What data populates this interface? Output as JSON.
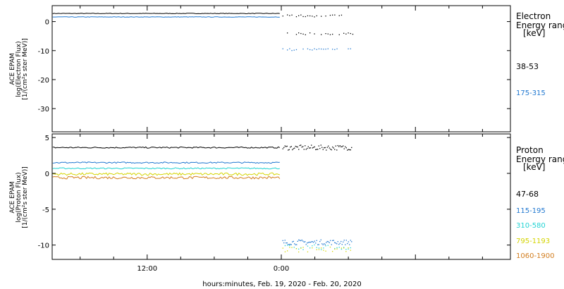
{
  "chart_data": {
    "type": "scatter",
    "xlabel": "hours:minutes, Feb. 19, 2020 - Feb. 20, 2020",
    "x_ticks": [
      "12:00",
      "0:00"
    ],
    "x_range_hours": [
      -20.5,
      20.5
    ],
    "panels": [
      {
        "id": "electron",
        "ylabel": [
          "ACE EPAM",
          "log(Electron Flux)",
          "[1/(cm²s ster MeV)]"
        ],
        "ylim": [
          -38,
          5.5
        ],
        "yticks": [
          0,
          -10,
          -20,
          -30
        ],
        "legend_title": [
          "Electron",
          "Energy ranges",
          "[keV]"
        ],
        "series": [
          {
            "name": "38-53",
            "color": "#000000",
            "level_before": 2.8,
            "level_after_1": 2.0,
            "level_after_2": -4.2
          },
          {
            "name": "175-315",
            "color": "#1f77d0",
            "level_before": 1.6,
            "level_after_1": -9.6
          }
        ]
      },
      {
        "id": "proton",
        "ylabel": [
          "ACE EPAM",
          "log(Proton Flux)",
          "[1/(cm²s ster MeV)]"
        ],
        "ylim": [
          -12,
          5.5
        ],
        "yticks": [
          5,
          0,
          -5,
          -10
        ],
        "legend_title": [
          "Proton",
          "Energy ranges",
          "[keV]"
        ],
        "series": [
          {
            "name": "47-68",
            "color": "#000000",
            "level_before": 3.6,
            "level_after_1": 3.6
          },
          {
            "name": "115-195",
            "color": "#1f77d0",
            "level_before": 1.5,
            "level_after_1": -9.6
          },
          {
            "name": "310-580",
            "color": "#22d3d3",
            "level_before": 0.7,
            "level_after_1": -10.3
          },
          {
            "name": "795-1193",
            "color": "#d4d400",
            "level_before": -0.1,
            "level_after_1": -10.6
          },
          {
            "name": "1060-1900",
            "color": "#d27d1e",
            "level_before": -0.6
          }
        ]
      }
    ]
  }
}
